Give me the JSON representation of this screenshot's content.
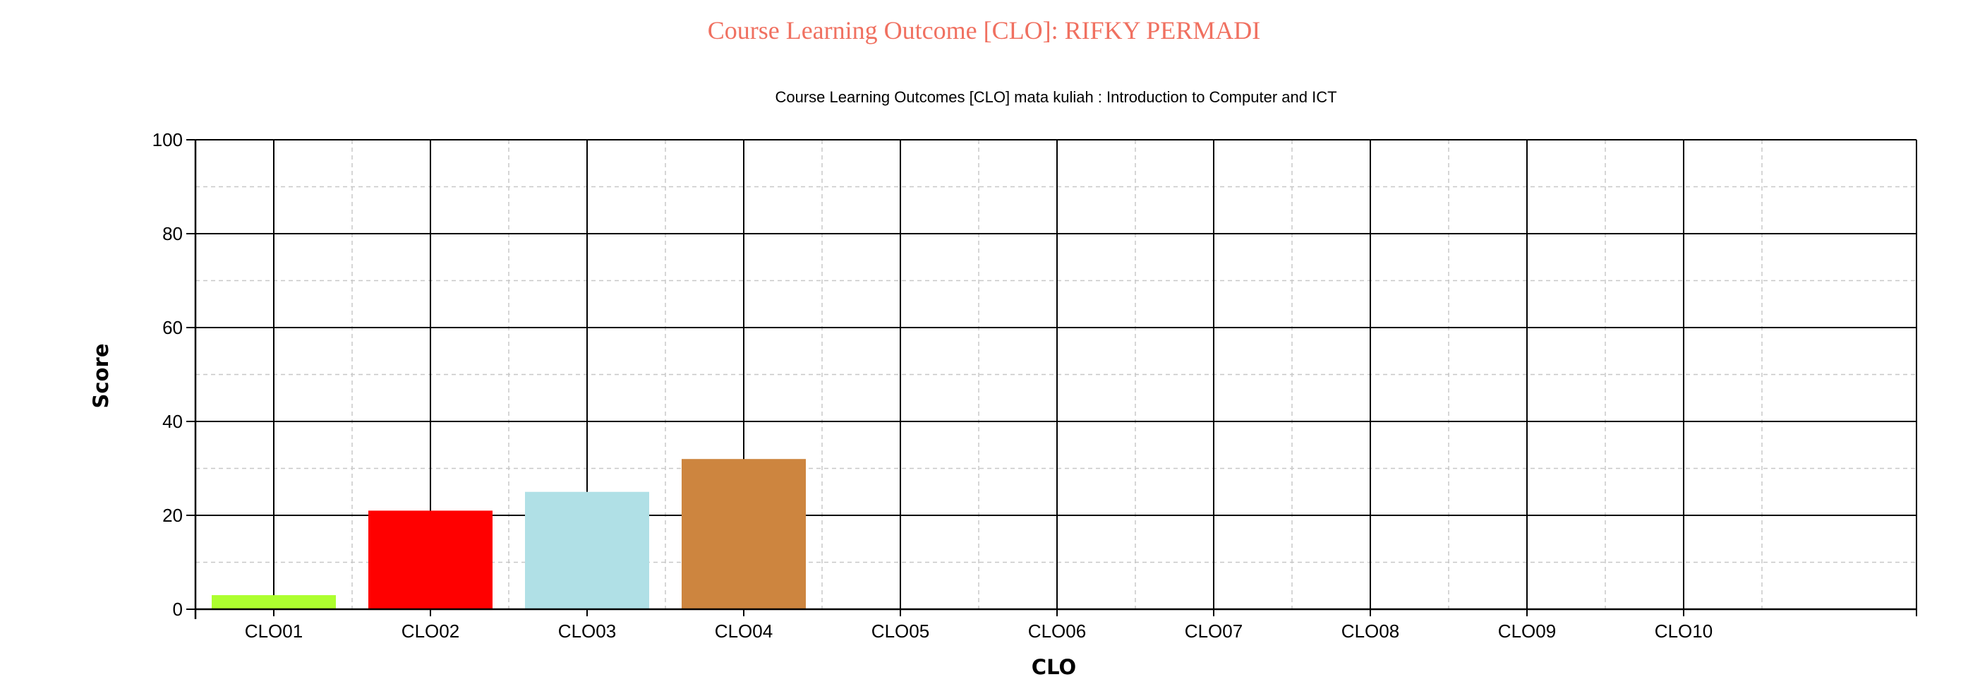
{
  "page": {
    "title": "Course Learning Outcome [CLO]: RIFKY PERMADI"
  },
  "chart_data": {
    "type": "bar",
    "title": "Course Learning Outcomes [CLO] mata kuliah : Introduction to Computer and ICT",
    "xlabel": "CLO",
    "ylabel": "Score",
    "categories": [
      "CLO01",
      "CLO02",
      "CLO03",
      "CLO04",
      "CLO05",
      "CLO06",
      "CLO07",
      "CLO08",
      "CLO09",
      "CLO10"
    ],
    "values": [
      3,
      21,
      25,
      32,
      0,
      0,
      0,
      0,
      0,
      0
    ],
    "colors": [
      "#ADFF2F",
      "#FF0000",
      "#B0E0E6",
      "#CD853F",
      "#000000",
      "#000000",
      "#000000",
      "#000000",
      "#000000",
      "#000000"
    ],
    "ylim": [
      0,
      100
    ],
    "yticks": [
      0,
      20,
      40,
      60,
      80,
      100
    ],
    "grid": true,
    "legend": "none"
  }
}
